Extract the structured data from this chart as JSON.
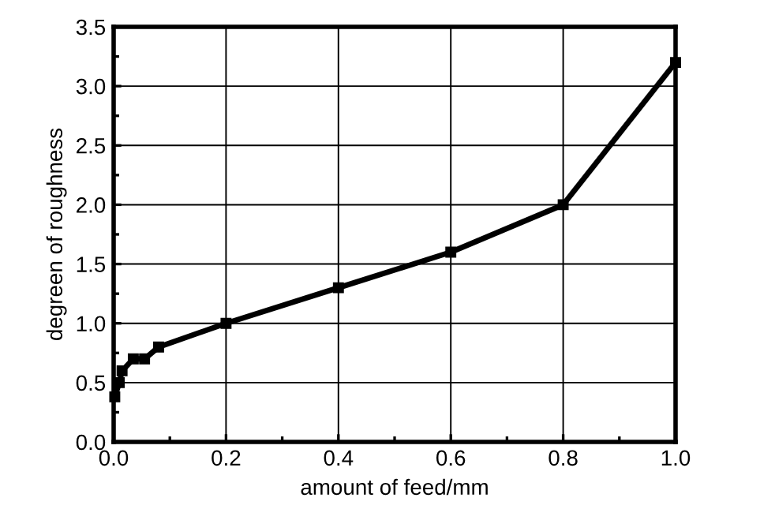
{
  "chart_data": {
    "type": "line",
    "xlabel": "amount of feed/mm",
    "ylabel": "degreen of roughness",
    "series": [
      {
        "color": "#000000",
        "x": [
          0.002,
          0.01,
          0.015,
          0.035,
          0.055,
          0.08,
          0.2,
          0.4,
          0.6,
          0.8,
          1.0
        ],
        "values": [
          0.38,
          0.5,
          0.6,
          0.7,
          0.7,
          0.8,
          1.0,
          1.3,
          1.6,
          2.0,
          3.2
        ]
      }
    ],
    "xlim": [
      0.0,
      1.0
    ],
    "xticks": [
      {
        "value": 0.0,
        "label": "0.0"
      },
      0.2,
      0.4,
      0.6,
      0.8,
      {
        "value": 1.0,
        "label": "1.0"
      }
    ],
    "ylim": [
      0.0,
      3.5
    ],
    "yticks": [
      {
        "value": 0.0,
        "label": "0.0"
      },
      0.5,
      {
        "value": 1.0,
        "label": "1.0"
      },
      1.5,
      {
        "value": 2.0,
        "label": "2.0"
      },
      2.5,
      {
        "value": 3.0,
        "label": "3.0"
      },
      3.5
    ],
    "grid": true,
    "marker": "square",
    "line_style": "solid"
  }
}
